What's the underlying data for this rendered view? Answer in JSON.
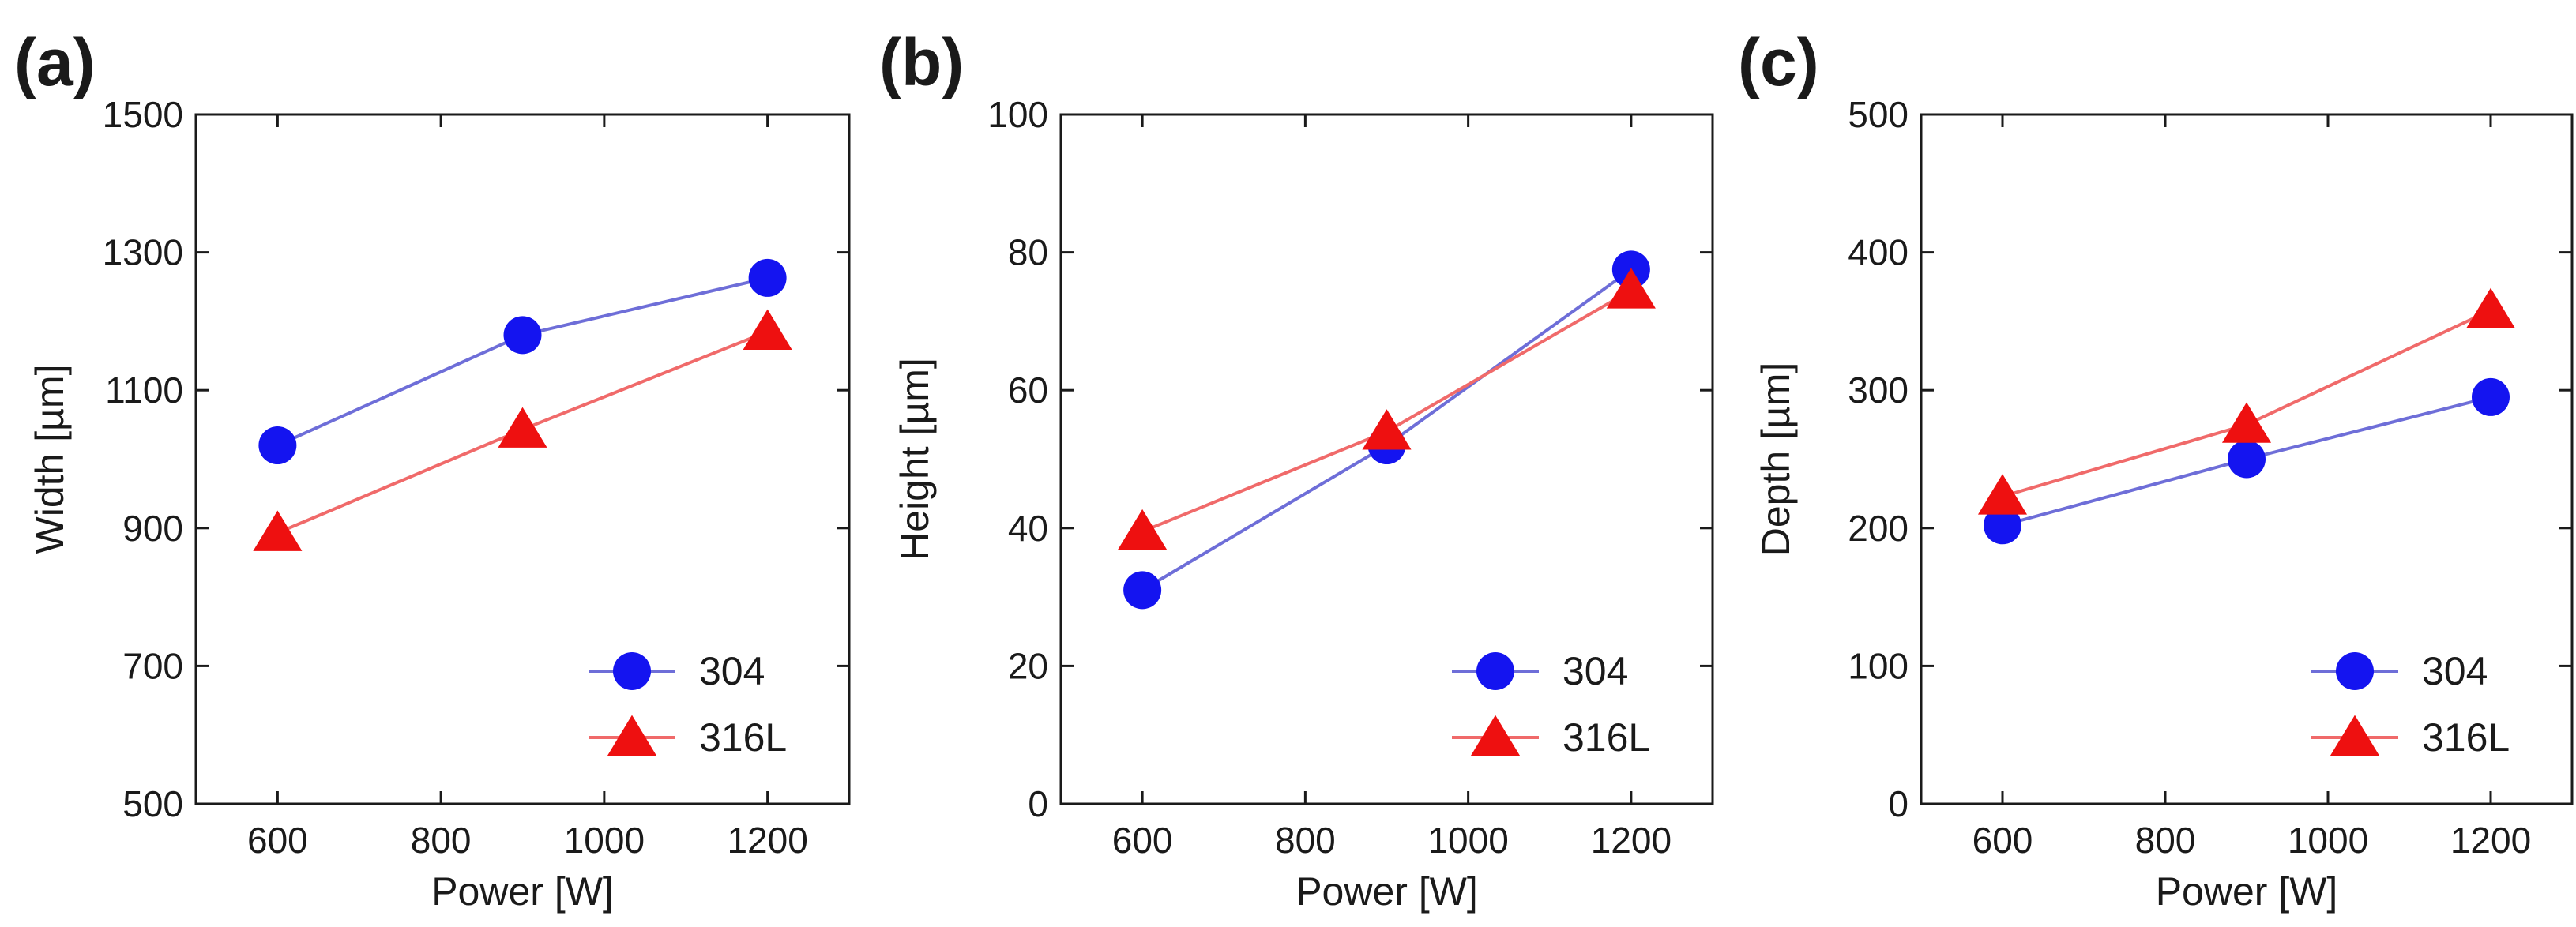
{
  "chart_data": [
    {
      "type": "line",
      "panel": "(a)",
      "xlabel": "Power [W]",
      "ylabel": "Width [µm]",
      "xlim": [
        500,
        1300
      ],
      "ylim": [
        500,
        1500
      ],
      "xticks": [
        600,
        800,
        1000,
        1200
      ],
      "yticks": [
        500,
        700,
        900,
        1100,
        1300,
        1500
      ],
      "legend_position": "bottom-right",
      "series": [
        {
          "name": "304",
          "marker": "circle",
          "color": "#1414f0",
          "line_color": "#6e6ed8",
          "x": [
            600,
            900,
            1200
          ],
          "values": [
            1020,
            1180,
            1263
          ]
        },
        {
          "name": "316L",
          "marker": "triangle",
          "color": "#ee1010",
          "line_color": "#f06a6a",
          "x": [
            600,
            900,
            1200
          ],
          "values": [
            893,
            1043,
            1185
          ]
        }
      ]
    },
    {
      "type": "line",
      "panel": "(b)",
      "xlabel": "Power [W]",
      "ylabel": "Height [µm]",
      "xlim": [
        500,
        1300
      ],
      "ylim": [
        0,
        100
      ],
      "xticks": [
        600,
        800,
        1000,
        1200
      ],
      "yticks": [
        0,
        20,
        40,
        60,
        80,
        100
      ],
      "legend_position": "bottom-right",
      "series": [
        {
          "name": "304",
          "marker": "circle",
          "color": "#1414f0",
          "line_color": "#6e6ed8",
          "x": [
            600,
            900,
            1200
          ],
          "values": [
            31,
            52,
            77.5
          ]
        },
        {
          "name": "316L",
          "marker": "triangle",
          "color": "#ee1010",
          "line_color": "#f06a6a",
          "x": [
            600,
            900,
            1200
          ],
          "values": [
            39.5,
            54,
            74.5
          ]
        }
      ]
    },
    {
      "type": "line",
      "panel": "(c)",
      "xlabel": "Power [W]",
      "ylabel": "Depth [µm]",
      "xlim": [
        500,
        1300
      ],
      "ylim": [
        0,
        500
      ],
      "xticks": [
        600,
        800,
        1000,
        1200
      ],
      "yticks": [
        0,
        100,
        200,
        300,
        400,
        500
      ],
      "legend_position": "bottom-right",
      "series": [
        {
          "name": "304",
          "marker": "circle",
          "color": "#1414f0",
          "line_color": "#6e6ed8",
          "x": [
            600,
            900,
            1200
          ],
          "values": [
            202,
            250,
            295
          ]
        },
        {
          "name": "316L",
          "marker": "triangle",
          "color": "#ee1010",
          "line_color": "#f06a6a",
          "x": [
            600,
            900,
            1200
          ],
          "values": [
            223,
            275,
            358
          ]
        }
      ]
    }
  ]
}
